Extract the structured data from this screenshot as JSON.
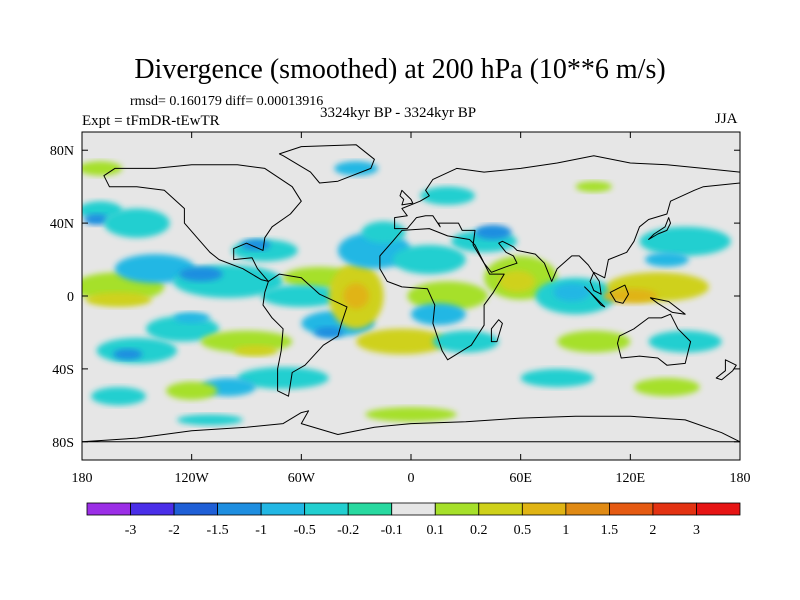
{
  "title": "Divergence (smoothed) at 200 hPa (10**6 m/s)",
  "stats": "rmsd= 0.160179 diff= 0.00013916",
  "experiment": "Expt = tFmDR-tEwTR",
  "period": "3324kyr BP - 3324kyr BP",
  "season": "JJA",
  "map": {
    "projection": "cylindrical equidistant",
    "lon_range": [
      -180,
      180
    ],
    "lat_range": [
      -90,
      90
    ],
    "x_ticks": [
      {
        "lon": -180,
        "label": "180"
      },
      {
        "lon": -120,
        "label": "120W"
      },
      {
        "lon": -60,
        "label": "60W"
      },
      {
        "lon": 0,
        "label": "0"
      },
      {
        "lon": 60,
        "label": "60E"
      },
      {
        "lon": 120,
        "label": "120E"
      },
      {
        "lon": 180,
        "label": "180"
      }
    ],
    "y_ticks": [
      {
        "lat": 80,
        "label": "80N"
      },
      {
        "lat": 40,
        "label": "40N"
      },
      {
        "lat": 0,
        "label": "0"
      },
      {
        "lat": -40,
        "label": "40S"
      },
      {
        "lat": -80,
        "label": "80S"
      }
    ]
  },
  "colorbar": {
    "labels": [
      "-3",
      "-2",
      "-1.5",
      "-1",
      "-0.5",
      "-0.2",
      "-0.1",
      "0.1",
      "0.2",
      "0.5",
      "1",
      "1.5",
      "2",
      "3"
    ],
    "colors": [
      "#9b2ee6",
      "#4a2ee8",
      "#1f5fd6",
      "#1e8ee0",
      "#22b7e4",
      "#22cfd0",
      "#28d9a0",
      "#e6e6e6",
      "#a6e02a",
      "#cfd11a",
      "#e0b414",
      "#e08a14",
      "#e55a12",
      "#e33212",
      "#e61414"
    ]
  },
  "fields": {
    "background": "#e6e6e6",
    "colors": {
      "c1": "#22b7e4",
      "c2": "#22cfd0",
      "c3": "#28d9a0",
      "c4": "#1e8ee0",
      "w1": "#a6e02a",
      "w2": "#cfd11a",
      "w3": "#e0b414",
      "w4": "#e08a14"
    },
    "patches": [
      {
        "lon": -170,
        "lat": 47,
        "rx": 12,
        "ry": 5,
        "c": "c2"
      },
      {
        "lon": -172,
        "lat": 42,
        "rx": 7,
        "ry": 3,
        "c": "c4"
      },
      {
        "lon": -160,
        "lat": 5,
        "rx": 25,
        "ry": 8,
        "c": "w1"
      },
      {
        "lon": -160,
        "lat": -2,
        "rx": 18,
        "ry": 4,
        "c": "w2"
      },
      {
        "lon": -150,
        "lat": 40,
        "rx": 18,
        "ry": 8,
        "c": "c2"
      },
      {
        "lon": -140,
        "lat": 15,
        "rx": 22,
        "ry": 8,
        "c": "c1"
      },
      {
        "lon": -100,
        "lat": 8,
        "rx": 30,
        "ry": 9,
        "c": "c2"
      },
      {
        "lon": -115,
        "lat": 12,
        "rx": 12,
        "ry": 4,
        "c": "c4"
      },
      {
        "lon": -125,
        "lat": -18,
        "rx": 20,
        "ry": 7,
        "c": "c2"
      },
      {
        "lon": -120,
        "lat": -12,
        "rx": 10,
        "ry": 3,
        "c": "c1"
      },
      {
        "lon": -150,
        "lat": -30,
        "rx": 22,
        "ry": 7,
        "c": "c2"
      },
      {
        "lon": -155,
        "lat": -32,
        "rx": 8,
        "ry": 3,
        "c": "c4"
      },
      {
        "lon": -90,
        "lat": -25,
        "rx": 25,
        "ry": 6,
        "c": "w1"
      },
      {
        "lon": -85,
        "lat": -30,
        "rx": 12,
        "ry": 3,
        "c": "w2"
      },
      {
        "lon": -70,
        "lat": -45,
        "rx": 25,
        "ry": 6,
        "c": "c2"
      },
      {
        "lon": -100,
        "lat": -50,
        "rx": 15,
        "ry": 5,
        "c": "c1"
      },
      {
        "lon": -160,
        "lat": -55,
        "rx": 15,
        "ry": 5,
        "c": "c2"
      },
      {
        "lon": -120,
        "lat": -52,
        "rx": 14,
        "ry": 5,
        "c": "w1"
      },
      {
        "lon": -80,
        "lat": 25,
        "rx": 18,
        "ry": 6,
        "c": "c2"
      },
      {
        "lon": -85,
        "lat": 28,
        "rx": 8,
        "ry": 3,
        "c": "c4"
      },
      {
        "lon": -50,
        "lat": 10,
        "rx": 20,
        "ry": 6,
        "c": "w1"
      },
      {
        "lon": -60,
        "lat": 0,
        "rx": 22,
        "ry": 6,
        "c": "c2"
      },
      {
        "lon": -40,
        "lat": -15,
        "rx": 20,
        "ry": 7,
        "c": "c1"
      },
      {
        "lon": -45,
        "lat": -20,
        "rx": 8,
        "ry": 3,
        "c": "c4"
      },
      {
        "lon": -30,
        "lat": 0,
        "rx": 15,
        "ry": 18,
        "c": "w2"
      },
      {
        "lon": -30,
        "lat": 0,
        "rx": 7,
        "ry": 7,
        "c": "w3"
      },
      {
        "lon": -20,
        "lat": 25,
        "rx": 20,
        "ry": 10,
        "c": "c1"
      },
      {
        "lon": -15,
        "lat": 35,
        "rx": 12,
        "ry": 6,
        "c": "c2"
      },
      {
        "lon": 10,
        "lat": 20,
        "rx": 20,
        "ry": 8,
        "c": "c2"
      },
      {
        "lon": 20,
        "lat": 0,
        "rx": 22,
        "ry": 8,
        "c": "w1"
      },
      {
        "lon": 15,
        "lat": -10,
        "rx": 15,
        "ry": 6,
        "c": "c1"
      },
      {
        "lon": -5,
        "lat": -25,
        "rx": 25,
        "ry": 7,
        "c": "w2"
      },
      {
        "lon": 30,
        "lat": -25,
        "rx": 18,
        "ry": 6,
        "c": "c2"
      },
      {
        "lon": 40,
        "lat": 30,
        "rx": 18,
        "ry": 6,
        "c": "c2"
      },
      {
        "lon": 45,
        "lat": 35,
        "rx": 10,
        "ry": 4,
        "c": "c4"
      },
      {
        "lon": 60,
        "lat": 10,
        "rx": 20,
        "ry": 12,
        "c": "w1"
      },
      {
        "lon": 58,
        "lat": 8,
        "rx": 10,
        "ry": 6,
        "c": "w2"
      },
      {
        "lon": 90,
        "lat": 0,
        "rx": 22,
        "ry": 10,
        "c": "c2"
      },
      {
        "lon": 88,
        "lat": 2,
        "rx": 10,
        "ry": 5,
        "c": "c1"
      },
      {
        "lon": 135,
        "lat": 5,
        "rx": 28,
        "ry": 8,
        "c": "w2"
      },
      {
        "lon": 120,
        "lat": 0,
        "rx": 15,
        "ry": 4,
        "c": "w3"
      },
      {
        "lon": 150,
        "lat": 30,
        "rx": 25,
        "ry": 8,
        "c": "c2"
      },
      {
        "lon": 140,
        "lat": 20,
        "rx": 12,
        "ry": 4,
        "c": "c1"
      },
      {
        "lon": 100,
        "lat": -25,
        "rx": 20,
        "ry": 6,
        "c": "w1"
      },
      {
        "lon": 150,
        "lat": -25,
        "rx": 20,
        "ry": 6,
        "c": "c2"
      },
      {
        "lon": 80,
        "lat": -45,
        "rx": 20,
        "ry": 5,
        "c": "c2"
      },
      {
        "lon": 140,
        "lat": -50,
        "rx": 18,
        "ry": 5,
        "c": "w1"
      },
      {
        "lon": 100,
        "lat": 60,
        "rx": 10,
        "ry": 3,
        "c": "w1"
      },
      {
        "lon": 20,
        "lat": 55,
        "rx": 15,
        "ry": 5,
        "c": "c2"
      },
      {
        "lon": -30,
        "lat": 70,
        "rx": 12,
        "ry": 4,
        "c": "c1"
      },
      {
        "lon": -170,
        "lat": 70,
        "rx": 12,
        "ry": 4,
        "c": "w1"
      },
      {
        "lon": 0,
        "lat": -65,
        "rx": 25,
        "ry": 4,
        "c": "w1"
      },
      {
        "lon": -110,
        "lat": -68,
        "rx": 18,
        "ry": 3,
        "c": "c2"
      }
    ]
  },
  "continents": [
    {
      "name": "north-america",
      "points": [
        [
          -168,
          66
        ],
        [
          -162,
          70
        ],
        [
          -140,
          70
        ],
        [
          -120,
          72
        ],
        [
          -95,
          72
        ],
        [
          -80,
          70
        ],
        [
          -65,
          60
        ],
        [
          -60,
          52
        ],
        [
          -66,
          45
        ],
        [
          -76,
          38
        ],
        [
          -80,
          32
        ],
        [
          -81,
          25
        ],
        [
          -90,
          29
        ],
        [
          -97,
          26
        ],
        [
          -97,
          20
        ],
        [
          -87,
          21
        ],
        [
          -84,
          15
        ],
        [
          -78,
          8
        ],
        [
          -82,
          9
        ],
        [
          -92,
          15
        ],
        [
          -105,
          20
        ],
        [
          -110,
          24
        ],
        [
          -117,
          32
        ],
        [
          -124,
          40
        ],
        [
          -124,
          48
        ],
        [
          -135,
          58
        ],
        [
          -150,
          60
        ],
        [
          -165,
          60
        ]
      ]
    },
    {
      "name": "greenland",
      "points": [
        [
          -72,
          78
        ],
        [
          -60,
          82
        ],
        [
          -30,
          83
        ],
        [
          -20,
          75
        ],
        [
          -22,
          70
        ],
        [
          -40,
          63
        ],
        [
          -50,
          62
        ],
        [
          -55,
          68
        ],
        [
          -70,
          77
        ]
      ]
    },
    {
      "name": "south-america",
      "points": [
        [
          -78,
          8
        ],
        [
          -72,
          12
        ],
        [
          -60,
          10
        ],
        [
          -50,
          1
        ],
        [
          -35,
          -6
        ],
        [
          -38,
          -15
        ],
        [
          -40,
          -22
        ],
        [
          -48,
          -27
        ],
        [
          -58,
          -38
        ],
        [
          -65,
          -42
        ],
        [
          -67,
          -55
        ],
        [
          -73,
          -52
        ],
        [
          -73,
          -40
        ],
        [
          -71,
          -30
        ],
        [
          -70,
          -18
        ],
        [
          -76,
          -12
        ],
        [
          -81,
          -5
        ],
        [
          -80,
          2
        ]
      ]
    },
    {
      "name": "africa",
      "points": [
        [
          -17,
          15
        ],
        [
          -17,
          22
        ],
        [
          -10,
          30
        ],
        [
          -5,
          36
        ],
        [
          10,
          37
        ],
        [
          20,
          33
        ],
        [
          32,
          31
        ],
        [
          35,
          28
        ],
        [
          43,
          12
        ],
        [
          51,
          12
        ],
        [
          45,
          2
        ],
        [
          40,
          -5
        ],
        [
          40,
          -16
        ],
        [
          33,
          -27
        ],
        [
          20,
          -35
        ],
        [
          17,
          -30
        ],
        [
          12,
          -15
        ],
        [
          13,
          -5
        ],
        [
          9,
          4
        ],
        [
          -5,
          5
        ],
        [
          -13,
          8
        ]
      ]
    },
    {
      "name": "eurasia",
      "points": [
        [
          -9,
          37
        ],
        [
          -9,
          43
        ],
        [
          -2,
          44
        ],
        [
          -5,
          48
        ],
        [
          5,
          52
        ],
        [
          10,
          55
        ],
        [
          8,
          58
        ],
        [
          12,
          64
        ],
        [
          25,
          70
        ],
        [
          40,
          68
        ],
        [
          60,
          70
        ],
        [
          80,
          73
        ],
        [
          100,
          77
        ],
        [
          120,
          73
        ],
        [
          140,
          72
        ],
        [
          160,
          70
        ],
        [
          180,
          68
        ],
        [
          180,
          62
        ],
        [
          160,
          60
        ],
        [
          155,
          58
        ],
        [
          142,
          52
        ],
        [
          140,
          45
        ],
        [
          130,
          42
        ],
        [
          125,
          38
        ],
        [
          122,
          30
        ],
        [
          118,
          24
        ],
        [
          108,
          20
        ],
        [
          106,
          10
        ],
        [
          100,
          13
        ],
        [
          98,
          8
        ],
        [
          100,
          3
        ],
        [
          104,
          1
        ],
        [
          103,
          8
        ],
        [
          97,
          17
        ],
        [
          92,
          22
        ],
        [
          88,
          22
        ],
        [
          80,
          15
        ],
        [
          77,
          8
        ],
        [
          73,
          18
        ],
        [
          68,
          23
        ],
        [
          58,
          25
        ],
        [
          56,
          27
        ],
        [
          50,
          30
        ],
        [
          48,
          29
        ],
        [
          52,
          24
        ],
        [
          56,
          22
        ],
        [
          58,
          18
        ],
        [
          52,
          16
        ],
        [
          44,
          13
        ],
        [
          40,
          18
        ],
        [
          34,
          28
        ],
        [
          35,
          36
        ],
        [
          28,
          36
        ],
        [
          26,
          40
        ],
        [
          20,
          40
        ],
        [
          15,
          40
        ],
        [
          16,
          38
        ],
        [
          12,
          44
        ],
        [
          8,
          44
        ],
        [
          3,
          43
        ],
        [
          -2,
          37
        ]
      ]
    },
    {
      "name": "australia",
      "points": [
        [
          114,
          -22
        ],
        [
          122,
          -18
        ],
        [
          130,
          -12
        ],
        [
          137,
          -12
        ],
        [
          142,
          -10
        ],
        [
          146,
          -18
        ],
        [
          153,
          -25
        ],
        [
          150,
          -37
        ],
        [
          140,
          -38
        ],
        [
          135,
          -34
        ],
        [
          125,
          -33
        ],
        [
          115,
          -34
        ],
        [
          113,
          -26
        ]
      ]
    },
    {
      "name": "antarctica",
      "points": [
        [
          -180,
          -80
        ],
        [
          -150,
          -78
        ],
        [
          -120,
          -74
        ],
        [
          -90,
          -72
        ],
        [
          -70,
          -70
        ],
        [
          -60,
          -64
        ],
        [
          -56,
          -63
        ],
        [
          -60,
          -70
        ],
        [
          -40,
          -76
        ],
        [
          -20,
          -72
        ],
        [
          0,
          -70
        ],
        [
          30,
          -69
        ],
        [
          60,
          -67
        ],
        [
          90,
          -66
        ],
        [
          120,
          -66
        ],
        [
          150,
          -68
        ],
        [
          170,
          -75
        ],
        [
          180,
          -80
        ]
      ]
    },
    {
      "name": "borneo",
      "points": [
        [
          109,
          2
        ],
        [
          112,
          -3
        ],
        [
          116,
          -4
        ],
        [
          119,
          1
        ],
        [
          117,
          6
        ],
        [
          113,
          4
        ]
      ]
    },
    {
      "name": "sumatra",
      "points": [
        [
          95,
          5
        ],
        [
          106,
          -6
        ],
        [
          104,
          -5
        ],
        [
          98,
          2
        ]
      ]
    },
    {
      "name": "new-guinea",
      "points": [
        [
          131,
          -1
        ],
        [
          141,
          -3
        ],
        [
          150,
          -10
        ],
        [
          143,
          -9
        ],
        [
          135,
          -4
        ]
      ]
    },
    {
      "name": "japan",
      "points": [
        [
          130,
          31
        ],
        [
          135,
          34
        ],
        [
          140,
          36
        ],
        [
          142,
          40
        ],
        [
          141,
          43
        ],
        [
          139,
          38
        ],
        [
          133,
          34
        ]
      ]
    },
    {
      "name": "madagascar",
      "points": [
        [
          44,
          -25
        ],
        [
          47,
          -25
        ],
        [
          50,
          -15
        ],
        [
          48,
          -13
        ],
        [
          44,
          -18
        ]
      ]
    },
    {
      "name": "great-britain",
      "points": [
        [
          -5,
          50
        ],
        [
          1,
          51
        ],
        [
          0,
          53
        ],
        [
          -3,
          56
        ],
        [
          -5,
          58
        ],
        [
          -6,
          55
        ],
        [
          -4,
          53
        ]
      ]
    },
    {
      "name": "new-zealand",
      "points": [
        [
          172,
          -35
        ],
        [
          178,
          -38
        ],
        [
          176,
          -41
        ],
        [
          170,
          -46
        ],
        [
          167,
          -45
        ],
        [
          172,
          -41
        ]
      ]
    }
  ]
}
